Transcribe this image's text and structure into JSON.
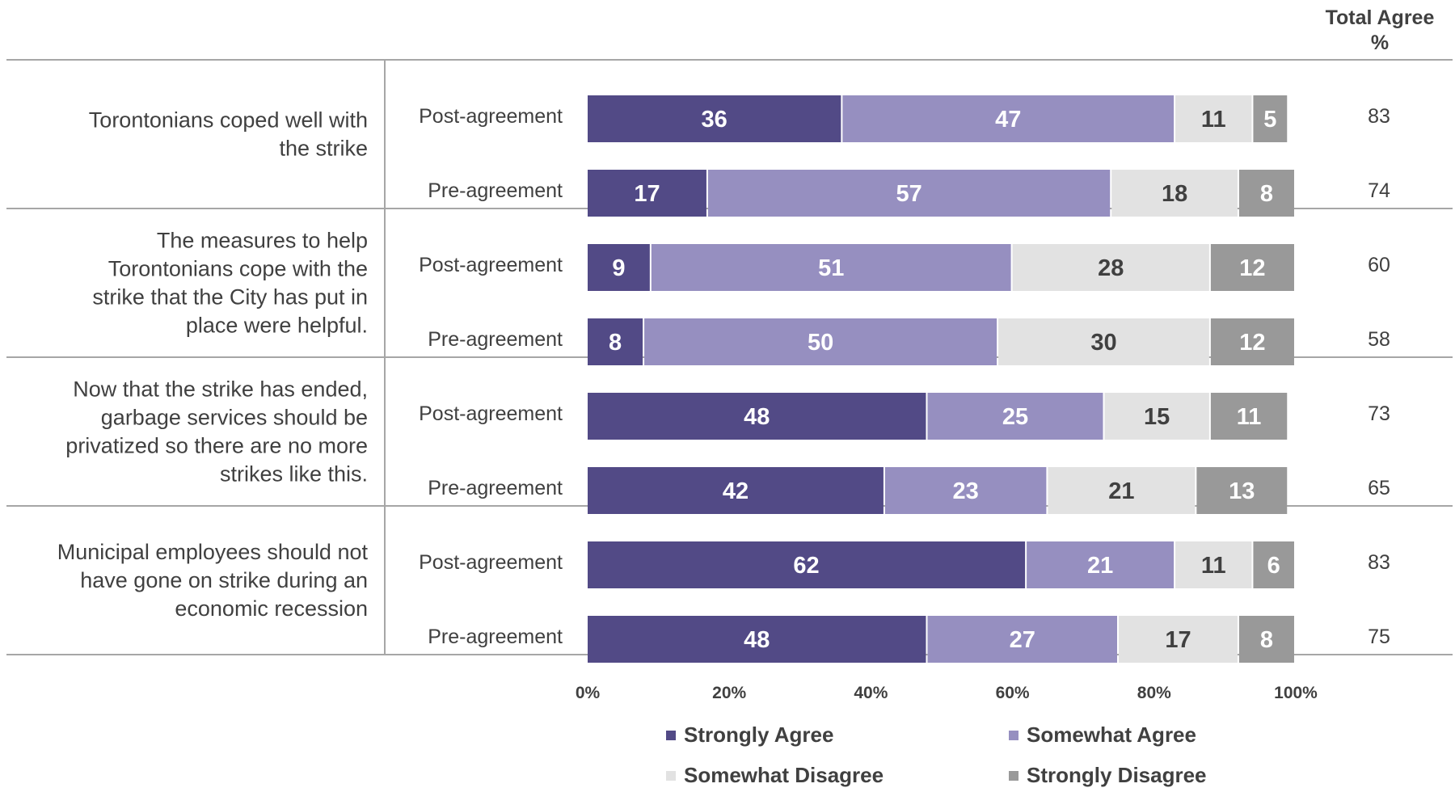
{
  "chart_data": {
    "type": "bar",
    "orientation": "horizontal",
    "stacked": true,
    "total_header": [
      "Total Agree",
      "%"
    ],
    "xlim": [
      0,
      100
    ],
    "x_ticks": [
      "0%",
      "20%",
      "40%",
      "60%",
      "80%",
      "100%"
    ],
    "legend_position": "bottom",
    "series": [
      {
        "name": "Strongly Agree",
        "color": "#524a86",
        "label_color": "#ffffff"
      },
      {
        "name": "Somewhat Agree",
        "color": "#968fc0",
        "label_color": "#ffffff"
      },
      {
        "name": "Somewhat Disagree",
        "color": "#e2e2e2",
        "label_color": "#404040"
      },
      {
        "name": "Strongly Disagree",
        "color": "#999999",
        "label_color": "#ffffff"
      }
    ],
    "groups": [
      {
        "question": [
          "Torontonians coped well with",
          "the strike"
        ],
        "rows": [
          {
            "label": "Post-agreement",
            "values": [
              36,
              47,
              11,
              5
            ],
            "total": "83"
          },
          {
            "label": "Pre-agreement",
            "values": [
              17,
              57,
              18,
              8
            ],
            "total": "74"
          }
        ]
      },
      {
        "question": [
          "The measures to help",
          "Torontonians cope with the",
          "strike that the City has put in",
          "place were helpful."
        ],
        "rows": [
          {
            "label": "Post-agreement",
            "values": [
              9,
              51,
              28,
              12
            ],
            "total": "60"
          },
          {
            "label": "Pre-agreement",
            "values": [
              8,
              50,
              30,
              12
            ],
            "total": "58"
          }
        ]
      },
      {
        "question": [
          "Now that the strike has ended,",
          "garbage services should be",
          "privatized so there are no more",
          "strikes like this."
        ],
        "rows": [
          {
            "label": "Post-agreement",
            "values": [
              48,
              25,
              15,
              11
            ],
            "total": "73"
          },
          {
            "label": "Pre-agreement",
            "values": [
              42,
              23,
              21,
              13
            ],
            "total": "65"
          }
        ]
      },
      {
        "question": [
          "Municipal employees should not",
          "have gone on strike during an",
          "economic recession"
        ],
        "rows": [
          {
            "label": "Post-agreement",
            "values": [
              62,
              21,
              11,
              6
            ],
            "total": "83"
          },
          {
            "label": "Pre-agreement",
            "values": [
              48,
              27,
              17,
              8
            ],
            "total": "75"
          }
        ]
      }
    ]
  }
}
